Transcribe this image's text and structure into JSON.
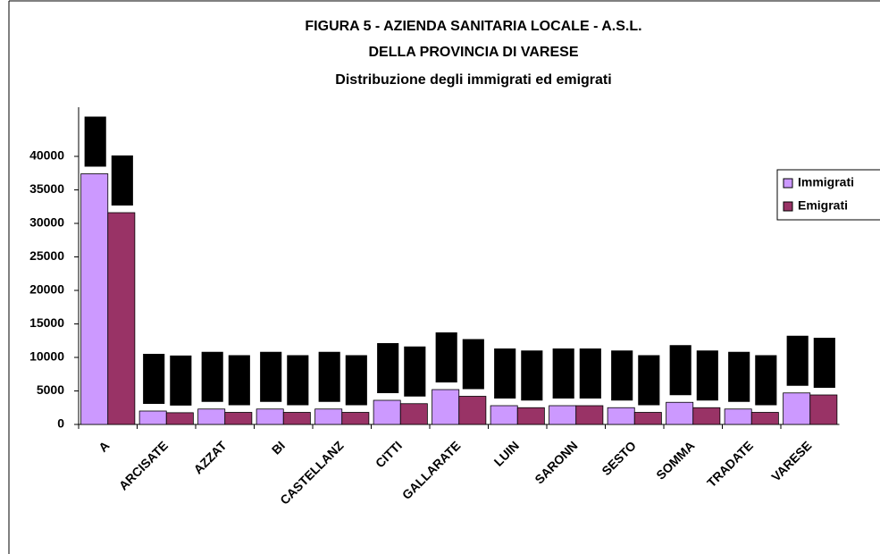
{
  "chart_data": {
    "type": "bar",
    "title": "FIGURA 5 - AZIENDA SANITARIA LOCALE - A.S.L.",
    "subtitle": "DELLA PROVINCIA DI VARESE",
    "subtitle2": "Distribuzione degli immigrati ed emigrati",
    "categories": [
      "A",
      "ARCISATE",
      "AZZAT",
      "BI",
      "CASTELLANZ",
      "CITTI",
      "GALLARATE",
      "LUIN",
      "SARONN",
      "SESTO",
      "SOMMA",
      "TRADATE",
      "VARESE"
    ],
    "series": [
      {
        "name": "Immigrati",
        "color": "#cc99ff",
        "values": [
          37400,
          2000,
          2300,
          2300,
          2300,
          3600,
          5200,
          2800,
          2800,
          2500,
          3300,
          2300,
          4700
        ]
      },
      {
        "name": "Emigrati",
        "color": "#993366",
        "values": [
          31600,
          1750,
          1800,
          1800,
          1800,
          3100,
          4200,
          2500,
          2800,
          1800,
          2500,
          1800,
          4400
        ]
      }
    ],
    "ylim": [
      0,
      40000
    ],
    "yticks": [
      0,
      5000,
      10000,
      15000,
      20000,
      25000,
      30000,
      35000,
      40000
    ],
    "legend": "right"
  }
}
